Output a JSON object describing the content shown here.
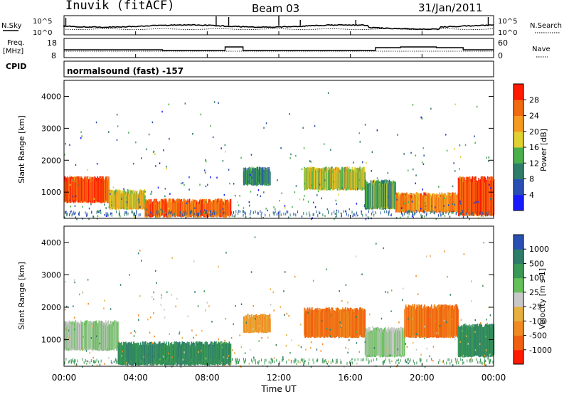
{
  "header": {
    "station": "Inuvik (fitACF)",
    "beam": "Beam 03",
    "date": "31/Jan/2011"
  },
  "left_labels": {
    "nsky": "N.Sky",
    "freq_line1": "Freq.",
    "freq_line2": "[MHz]",
    "cpid": "CPID"
  },
  "right_labels": {
    "nsearch": "N.Search",
    "nave": "Nave"
  },
  "mode_text": "normalsound (fast) -157",
  "noise_panel": {
    "ticks": [
      "10^5",
      "10^0"
    ]
  },
  "freq_panel": {
    "left_ticks": [
      "18",
      "8"
    ],
    "right_ticks": [
      "60",
      "0"
    ]
  },
  "power_panel": {
    "ylabel": "Slant Range [km]",
    "yticks": [
      "4000",
      "3000",
      "2000",
      "1000"
    ],
    "colorbar_label": "Power [dB]",
    "colorbar_ticks": [
      "28",
      "24",
      "20",
      "16",
      "12",
      "8",
      "4"
    ],
    "colors": [
      "#1a1aff",
      "#2a4fb3",
      "#2e7d6b",
      "#4bb04b",
      "#e0d030",
      "#f59a20",
      "#f26a10",
      "#ff1a00"
    ]
  },
  "velocity_panel": {
    "ylabel": "Slant Range [km]",
    "yticks": [
      "4000",
      "3000",
      "2000",
      "1000"
    ],
    "colorbar_label": "Velocity [m s-1]",
    "colorbar_ticks": [
      "1000",
      "500",
      "100",
      "25",
      "-25",
      "-100",
      "-500",
      "-1000"
    ],
    "colors": [
      "#2a4fb3",
      "#2e7d6b",
      "#3a9a55",
      "#66c05a",
      "#c8c8c8",
      "#e6b040",
      "#f08a20",
      "#f06010",
      "#ff1a00"
    ]
  },
  "x_axis": {
    "ticks": [
      "00:00",
      "04:00",
      "08:00",
      "12:00",
      "16:00",
      "20:00",
      "00:00"
    ],
    "label": "Time UT"
  },
  "chart_data": {
    "type": "heatmap",
    "x_range_hours": [
      0,
      24
    ],
    "y_range_km": [
      180,
      4500
    ],
    "power_bands": [
      {
        "t0": 0.0,
        "t1": 2.5,
        "r0": 700,
        "r1": 1400,
        "power_db": 28
      },
      {
        "t0": 2.5,
        "t1": 4.5,
        "r0": 500,
        "r1": 1000,
        "power_db": 20
      },
      {
        "t0": 4.5,
        "t1": 9.3,
        "r0": 250,
        "r1": 700,
        "power_db": 26
      },
      {
        "t0": 10.0,
        "t1": 11.5,
        "r0": 1250,
        "r1": 1700,
        "power_db": 12
      },
      {
        "t0": 13.4,
        "t1": 16.8,
        "r0": 1100,
        "r1": 1700,
        "power_db": 18
      },
      {
        "t0": 16.8,
        "t1": 18.5,
        "r0": 500,
        "r1": 1300,
        "power_db": 14
      },
      {
        "t0": 18.5,
        "t1": 22.0,
        "r0": 400,
        "r1": 900,
        "power_db": 24
      },
      {
        "t0": 22.0,
        "t1": 24.0,
        "r0": 300,
        "r1": 1400,
        "power_db": 28
      }
    ],
    "velocity_bands": [
      {
        "t0": 0.0,
        "t1": 3.0,
        "r0": 700,
        "r1": 1500,
        "velocity": 25
      },
      {
        "t0": 3.0,
        "t1": 9.3,
        "r0": 250,
        "r1": 850,
        "velocity": 100
      },
      {
        "t0": 10.0,
        "t1": 11.5,
        "r0": 1250,
        "r1": 1700,
        "velocity": -100
      },
      {
        "t0": 13.4,
        "t1": 16.8,
        "r0": 1100,
        "r1": 1900,
        "velocity": -500
      },
      {
        "t0": 16.8,
        "t1": 19.0,
        "r0": 500,
        "r1": 1300,
        "velocity": 25
      },
      {
        "t0": 19.0,
        "t1": 22.0,
        "r0": 1100,
        "r1": 2000,
        "velocity": -500
      },
      {
        "t0": 22.0,
        "t1": 24.0,
        "r0": 500,
        "r1": 1400,
        "velocity": 100
      }
    ]
  }
}
